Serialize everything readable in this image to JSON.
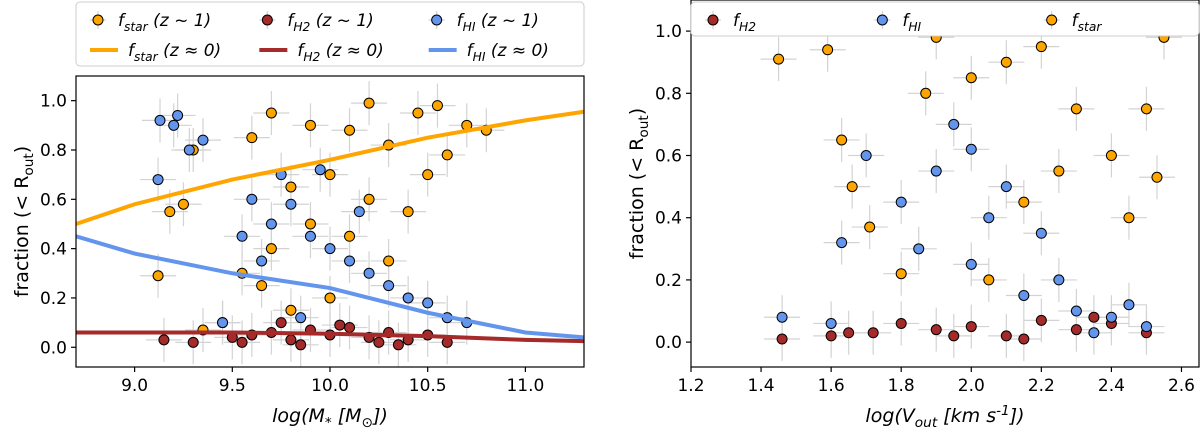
{
  "chart_data": [
    {
      "type": "scatter",
      "xlabel": "log(M_* [M_⊙])",
      "ylabel": "fraction (< R_out)",
      "xlim": [
        8.7,
        11.3
      ],
      "ylim": [
        -0.08,
        1.1
      ],
      "xticks": [
        9.0,
        9.5,
        10.0,
        10.5,
        11.0
      ],
      "yticks": [
        0.0,
        0.2,
        0.4,
        0.6,
        0.8,
        1.0
      ],
      "grid": false,
      "legend": "top, outside, 3 columns",
      "legend_entries": [
        "f_star (z ~ 1)",
        "f_H2 (z ~ 1)",
        "f_HI (z ~ 1)",
        "f_star (z ≈ 0)",
        "f_H2 (z ≈ 0)",
        "f_HI (z ≈ 0)"
      ],
      "colors": {
        "star": "#ffa500",
        "h2": "#a52a2a",
        "hi": "#6495ed",
        "error": "#d3d3d3",
        "edge": "#000000"
      },
      "lines": [
        {
          "name": "f_star (z ≈ 0)",
          "color": "#ffa500",
          "x": [
            8.7,
            9.0,
            9.5,
            10.0,
            10.5,
            11.0,
            11.3
          ],
          "y": [
            0.5,
            0.58,
            0.68,
            0.76,
            0.85,
            0.92,
            0.955
          ]
        },
        {
          "name": "f_H2 (z ≈ 0)",
          "color": "#a52a2a",
          "x": [
            8.7,
            9.5,
            10.0,
            10.5,
            11.0,
            11.3
          ],
          "y": [
            0.06,
            0.06,
            0.055,
            0.045,
            0.03,
            0.025
          ]
        },
        {
          "name": "f_HI (z ≈ 0)",
          "color": "#6495ed",
          "x": [
            8.7,
            9.0,
            9.5,
            10.0,
            10.5,
            11.0,
            11.3
          ],
          "y": [
            0.45,
            0.38,
            0.3,
            0.24,
            0.14,
            0.06,
            0.04
          ]
        }
      ],
      "series": [
        {
          "name": "f_star (z ~ 1)",
          "color": "#ffa500",
          "points": [
            [
              9.12,
              0.29
            ],
            [
              9.25,
              0.58
            ],
            [
              9.18,
              0.55
            ],
            [
              9.3,
              0.8
            ],
            [
              9.6,
              0.85
            ],
            [
              9.7,
              0.95
            ],
            [
              9.9,
              0.9
            ],
            [
              10.1,
              0.88
            ],
            [
              10.3,
              0.82
            ],
            [
              9.8,
              0.65
            ],
            [
              10.0,
              0.7
            ],
            [
              10.2,
              0.6
            ],
            [
              9.9,
              0.5
            ],
            [
              10.1,
              0.45
            ],
            [
              9.7,
              0.4
            ],
            [
              10.4,
              0.55
            ],
            [
              10.5,
              0.7
            ],
            [
              10.6,
              0.78
            ],
            [
              10.8,
              0.88
            ],
            [
              10.45,
              0.95
            ],
            [
              9.55,
              0.3
            ],
            [
              9.65,
              0.25
            ],
            [
              10.0,
              0.2
            ],
            [
              10.3,
              0.35
            ],
            [
              9.8,
              0.15
            ],
            [
              9.45,
              0.1
            ],
            [
              9.35,
              0.07
            ],
            [
              10.7,
              0.9
            ],
            [
              10.55,
              0.98
            ],
            [
              10.2,
              0.99
            ]
          ]
        },
        {
          "name": "f_H2 (z ~ 1)",
          "color": "#a52a2a",
          "points": [
            [
              9.15,
              0.03
            ],
            [
              9.3,
              0.02
            ],
            [
              9.5,
              0.04
            ],
            [
              9.6,
              0.05
            ],
            [
              9.7,
              0.06
            ],
            [
              9.8,
              0.03
            ],
            [
              9.9,
              0.07
            ],
            [
              10.0,
              0.05
            ],
            [
              10.1,
              0.08
            ],
            [
              10.2,
              0.04
            ],
            [
              10.3,
              0.06
            ],
            [
              10.4,
              0.03
            ],
            [
              10.5,
              0.05
            ],
            [
              10.6,
              0.02
            ],
            [
              9.75,
              0.1
            ],
            [
              10.05,
              0.09
            ],
            [
              9.85,
              0.01
            ],
            [
              10.35,
              0.01
            ],
            [
              9.55,
              0.02
            ],
            [
              10.25,
              0.02
            ]
          ]
        },
        {
          "name": "f_HI (z ~ 1)",
          "color": "#6495ed",
          "points": [
            [
              9.13,
              0.92
            ],
            [
              9.22,
              0.94
            ],
            [
              9.2,
              0.9
            ],
            [
              9.28,
              0.8
            ],
            [
              9.12,
              0.68
            ],
            [
              9.35,
              0.84
            ],
            [
              9.6,
              0.6
            ],
            [
              9.7,
              0.5
            ],
            [
              9.8,
              0.58
            ],
            [
              9.9,
              0.45
            ],
            [
              10.0,
              0.4
            ],
            [
              10.1,
              0.35
            ],
            [
              10.2,
              0.3
            ],
            [
              10.3,
              0.25
            ],
            [
              10.4,
              0.2
            ],
            [
              10.5,
              0.18
            ],
            [
              9.55,
              0.45
            ],
            [
              9.65,
              0.35
            ],
            [
              10.6,
              0.12
            ],
            [
              10.7,
              0.1
            ],
            [
              9.75,
              0.7
            ],
            [
              9.95,
              0.72
            ],
            [
              10.15,
              0.55
            ],
            [
              9.45,
              0.1
            ],
            [
              9.85,
              0.12
            ]
          ]
        }
      ]
    },
    {
      "type": "scatter",
      "xlabel": "log(V_out [km s^-1])",
      "ylabel": "fraction (< R_out)",
      "xlim": [
        1.2,
        2.65
      ],
      "ylim": [
        -0.08,
        1.1
      ],
      "xticks": [
        1.2,
        1.4,
        1.6,
        1.8,
        2.0,
        2.2,
        2.4,
        2.6
      ],
      "yticks": [
        0.0,
        0.2,
        0.4,
        0.6,
        0.8,
        1.0
      ],
      "grid": false,
      "legend": "top, outside, 3 columns",
      "legend_entries": [
        "f_H2",
        "f_HI",
        "f_star"
      ],
      "colors": {
        "star": "#ffa500",
        "h2": "#a52a2a",
        "hi": "#6495ed",
        "error": "#d3d3d3",
        "edge": "#000000"
      },
      "series": [
        {
          "name": "f_H2",
          "color": "#a52a2a",
          "points": [
            [
              1.46,
              0.01
            ],
            [
              1.6,
              0.02
            ],
            [
              1.65,
              0.03
            ],
            [
              1.72,
              0.03
            ],
            [
              1.8,
              0.06
            ],
            [
              1.9,
              0.04
            ],
            [
              2.0,
              0.05
            ],
            [
              2.1,
              0.02
            ],
            [
              2.2,
              0.07
            ],
            [
              2.3,
              0.04
            ],
            [
              2.4,
              0.06
            ],
            [
              2.5,
              0.03
            ],
            [
              1.95,
              0.02
            ],
            [
              2.15,
              0.01
            ],
            [
              2.35,
              0.08
            ]
          ]
        },
        {
          "name": "f_HI",
          "color": "#6495ed",
          "points": [
            [
              1.46,
              0.08
            ],
            [
              1.6,
              0.06
            ],
            [
              1.63,
              0.32
            ],
            [
              1.7,
              0.6
            ],
            [
              1.8,
              0.45
            ],
            [
              1.85,
              0.3
            ],
            [
              1.9,
              0.55
            ],
            [
              2.0,
              0.62
            ],
            [
              2.05,
              0.4
            ],
            [
              2.1,
              0.5
            ],
            [
              2.2,
              0.35
            ],
            [
              2.25,
              0.2
            ],
            [
              2.3,
              0.1
            ],
            [
              2.4,
              0.08
            ],
            [
              2.5,
              0.05
            ],
            [
              1.95,
              0.7
            ],
            [
              2.15,
              0.15
            ],
            [
              2.35,
              0.03
            ],
            [
              2.45,
              0.12
            ],
            [
              2.0,
              0.25
            ]
          ]
        },
        {
          "name": "f_star",
          "color": "#ffa500",
          "points": [
            [
              1.45,
              0.91
            ],
            [
              1.59,
              0.94
            ],
            [
              1.63,
              0.65
            ],
            [
              1.66,
              0.5
            ],
            [
              1.71,
              0.37
            ],
            [
              1.8,
              0.22
            ],
            [
              1.87,
              0.8
            ],
            [
              1.9,
              0.98
            ],
            [
              2.0,
              0.85
            ],
            [
              2.1,
              0.9
            ],
            [
              2.2,
              0.95
            ],
            [
              2.3,
              0.75
            ],
            [
              2.4,
              0.6
            ],
            [
              2.45,
              0.4
            ],
            [
              2.53,
              0.53
            ],
            [
              2.55,
              0.98
            ],
            [
              2.5,
              0.75
            ],
            [
              2.25,
              0.55
            ],
            [
              2.15,
              0.45
            ],
            [
              2.05,
              0.2
            ]
          ]
        }
      ]
    }
  ]
}
